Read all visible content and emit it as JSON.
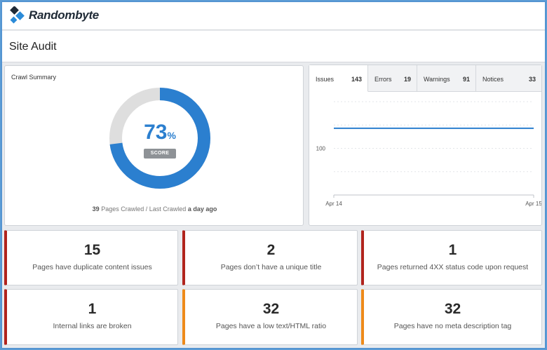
{
  "app": {
    "name": "Randombyte"
  },
  "page": {
    "title": "Site Audit"
  },
  "summary": {
    "title": "Crawl Summary",
    "score_value": "73",
    "score_unit": "%",
    "score_fraction": 0.73,
    "score_label": "SCORE",
    "pages_crawled": "39",
    "pages_crawled_label": "Pages Crawled",
    "separator": "/",
    "last_crawled_label": "Last Crawled",
    "last_crawled_value": "a day ago",
    "colors": {
      "score_fill": "#2b7fcf",
      "score_track": "#dedede"
    }
  },
  "chart_tabs": [
    {
      "label": "Issues",
      "count": "143",
      "active": true
    },
    {
      "label": "Errors",
      "count": "19",
      "active": false
    },
    {
      "label": "Warnings",
      "count": "91",
      "active": false
    },
    {
      "label": "Notices",
      "count": "33",
      "active": false
    }
  ],
  "chart_data": {
    "type": "line",
    "x": [
      "Apr 14",
      "Apr 15"
    ],
    "series": [
      {
        "values": [
          143,
          143
        ],
        "color": "#2b7fcf"
      }
    ],
    "y_tick_labels": [
      "100"
    ],
    "x_tick_labels": [
      "Apr 14",
      "Apr 15"
    ],
    "ylim": [
      0,
      200
    ],
    "grid": true,
    "title": "",
    "xlabel": "",
    "ylabel": ""
  },
  "cards": [
    {
      "number": "15",
      "text": "Pages have duplicate content issues",
      "severity": "error"
    },
    {
      "number": "2",
      "text": "Pages don’t have a unique title",
      "severity": "error"
    },
    {
      "number": "1",
      "text": "Pages returned 4XX status code upon request",
      "severity": "error"
    },
    {
      "number": "1",
      "text": "Internal links are broken",
      "severity": "error"
    },
    {
      "number": "32",
      "text": "Pages have a low text/HTML ratio",
      "severity": "warning"
    },
    {
      "number": "32",
      "text": "Pages have no meta description tag",
      "severity": "warning"
    }
  ],
  "colors": {
    "error": "#b1241d",
    "warning": "#ee8a1a",
    "accent": "#2b7fcf"
  }
}
